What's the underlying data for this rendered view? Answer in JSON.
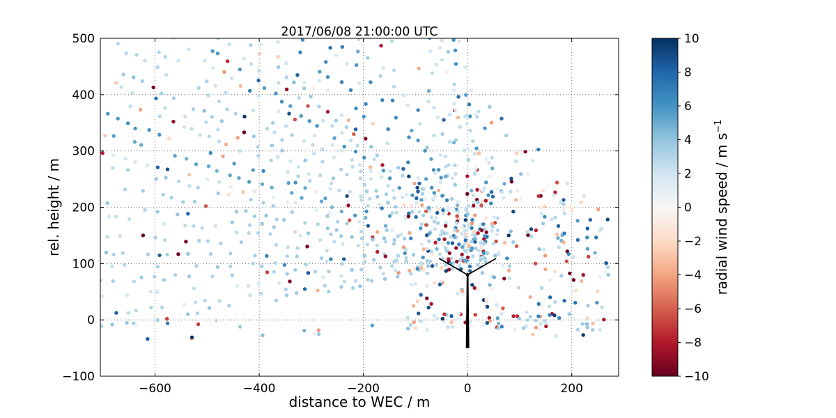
{
  "chart_data": {
    "type": "scatter",
    "title": "2017/06/08 21:00:00 UTC",
    "xlabel": "distance to WEC / m",
    "ylabel": "rel. height / m",
    "xlim": [
      -705,
      290
    ],
    "ylim": [
      -100,
      500
    ],
    "grid": true,
    "marker_radius_px": 2.7,
    "colors": {
      "background": "#ffffff",
      "frame": "#000000",
      "grid": "#555555",
      "turbine": "#000000"
    },
    "x_ticks": [
      {
        "v": -600,
        "label": "−600"
      },
      {
        "v": -400,
        "label": "−400"
      },
      {
        "v": -200,
        "label": "−200"
      },
      {
        "v": 0,
        "label": "0"
      },
      {
        "v": 200,
        "label": "200"
      }
    ],
    "y_ticks": [
      {
        "v": -100,
        "label": "−100"
      },
      {
        "v": 0,
        "label": "0"
      },
      {
        "v": 100,
        "label": "100"
      },
      {
        "v": 200,
        "label": "200"
      },
      {
        "v": 300,
        "label": "300"
      },
      {
        "v": 400,
        "label": "400"
      },
      {
        "v": 500,
        "label": "500"
      }
    ],
    "colorbar": {
      "label_base": "radial wind speed / m s",
      "label_sup": "−1",
      "vmin": -10,
      "vmax": 10,
      "colormap": "RdBu",
      "ticks": [
        {
          "v": 10,
          "label": "10"
        },
        {
          "v": 8,
          "label": "8"
        },
        {
          "v": 6,
          "label": "6"
        },
        {
          "v": 4,
          "label": "4"
        },
        {
          "v": 2,
          "label": "2"
        },
        {
          "v": 0,
          "label": "0"
        },
        {
          "v": -2,
          "label": "−2"
        },
        {
          "v": -4,
          "label": "−4"
        },
        {
          "v": -6,
          "label": "−6"
        },
        {
          "v": -8,
          "label": "−8"
        },
        {
          "v": -10,
          "label": "−10"
        }
      ],
      "stops": [
        {
          "v": -10,
          "c": "#67001f"
        },
        {
          "v": -8,
          "c": "#b2182b"
        },
        {
          "v": -6,
          "c": "#d6604d"
        },
        {
          "v": -4,
          "c": "#f4a582"
        },
        {
          "v": -2,
          "c": "#fddbc7"
        },
        {
          "v": 0,
          "c": "#f7f7f7"
        },
        {
          "v": 2,
          "c": "#d1e5f0"
        },
        {
          "v": 4,
          "c": "#92c5de"
        },
        {
          "v": 6,
          "c": "#4393c3"
        },
        {
          "v": 8,
          "c": "#2166ac"
        },
        {
          "v": 10,
          "c": "#053061"
        }
      ]
    },
    "turbine": {
      "x": 0,
      "hub_height": 80,
      "tower_base": -50,
      "rotor_radius": 62,
      "blade_angles_deg": [
        28,
        152,
        270
      ]
    },
    "scan": {
      "seed": 20170608,
      "origin": [
        70,
        105
      ],
      "rays": {
        "count": 42,
        "angle_min_deg": 102,
        "angle_max_deg": 189,
        "r_min": 35,
        "r_max": 830,
        "step": 21,
        "pos_jitter": 8
      },
      "dropout": {
        "steep_below_deg": 140,
        "shallow_above_deg": 183,
        "steep": 0.58,
        "mid": 0.26,
        "shallow": 0.42
      },
      "speed": {
        "base_min": 1.4,
        "base_spread": 2.4,
        "fast_ray_prob": 0.16,
        "fast_ray_boost": 2.6,
        "point_jitter": 0.8,
        "outliers": [
          {
            "prob": 0.045,
            "lo": -10,
            "hi": -6
          },
          {
            "prob": 0.05,
            "lo": -4.5,
            "hi": -0.5
          },
          {
            "prob": 0.045,
            "lo": 6.5,
            "hi": 10
          }
        ],
        "near_r": 170,
        "near_outlier_mult": 2.2
      },
      "clusters": [
        {
          "name": "right-field",
          "count": 190,
          "x": [
            -25,
            272
          ],
          "y": [
            -30,
            380
          ],
          "bound": {
            "x0": 0,
            "y0": 440,
            "slope": -0.95
          },
          "mix": [
            {
              "p": 0.42,
              "lo": 0.5,
              "hi": 4
            },
            {
              "p": 0.18,
              "lo": 4,
              "hi": 7.5
            },
            {
              "p": 0.12,
              "lo": 7.5,
              "hi": 10
            },
            {
              "p": 0.16,
              "lo": -4.5,
              "hi": -0.5
            },
            {
              "p": 0.12,
              "lo": -10,
              "hi": -6
            }
          ]
        },
        {
          "name": "near-wec",
          "count": 85,
          "x": [
            -125,
            55
          ],
          "y": [
            -10,
            235
          ],
          "bound": null,
          "mix": [
            {
              "p": 0.3,
              "lo": 0.5,
              "hi": 4
            },
            {
              "p": 0.17,
              "lo": 4,
              "hi": 7.5
            },
            {
              "p": 0.16,
              "lo": 7.5,
              "hi": 10
            },
            {
              "p": 0.19,
              "lo": -4.5,
              "hi": -0.5
            },
            {
              "p": 0.18,
              "lo": -10,
              "hi": -6
            }
          ]
        },
        {
          "name": "ground-row",
          "count": 55,
          "x": [
            -120,
            255
          ],
          "y": [
            -18,
            12
          ],
          "bound": null,
          "mix": [
            {
              "p": 0.5,
              "lo": 0.5,
              "hi": 4
            },
            {
              "p": 0.14,
              "lo": 4,
              "hi": 7.5
            },
            {
              "p": 0.1,
              "lo": 7.5,
              "hi": 10
            },
            {
              "p": 0.16,
              "lo": -4.5,
              "hi": -0.5
            },
            {
              "p": 0.1,
              "lo": -10,
              "hi": -6
            }
          ]
        },
        {
          "name": "low-left",
          "count": 14,
          "x": [
            -640,
            -180
          ],
          "y": [
            -35,
            0
          ],
          "bound": null,
          "mix": [
            {
              "p": 0.5,
              "lo": 0.5,
              "hi": 4
            },
            {
              "p": 0.2,
              "lo": 4,
              "hi": 7.5
            },
            {
              "p": 0.1,
              "lo": 7.5,
              "hi": 10
            },
            {
              "p": 0.1,
              "lo": -4.5,
              "hi": -0.5
            },
            {
              "p": 0.1,
              "lo": -10,
              "hi": -6
            }
          ]
        }
      ]
    }
  }
}
